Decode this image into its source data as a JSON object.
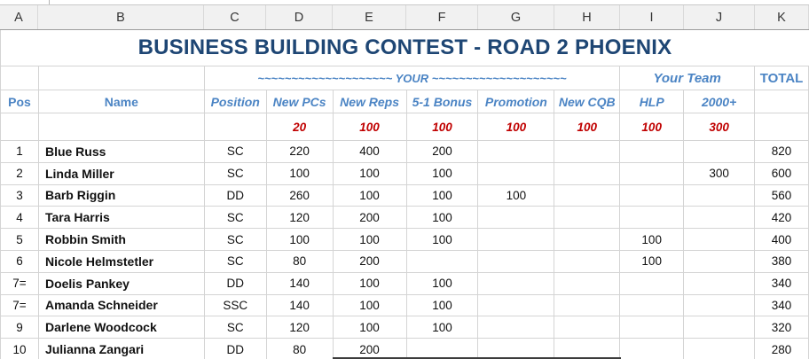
{
  "columns": [
    "A",
    "B",
    "C",
    "D",
    "E",
    "F",
    "G",
    "H",
    "I",
    "J",
    "K"
  ],
  "title": "BUSINESS BUILDING CONTEST - ROAD 2 PHOENIX",
  "groups": {
    "your": "~~~~~~~~~~~~~~~~~~~~ YOUR ~~~~~~~~~~~~~~~~~~~~",
    "your_team": "Your Team",
    "total": "TOTAL"
  },
  "headers": {
    "pos": "Pos",
    "name": "Name",
    "position": "Position",
    "new_pcs": "New PCs",
    "new_reps": "New Reps",
    "bonus": "5-1 Bonus",
    "promotion": "Promotion",
    "new_cqb": "New CQB",
    "hlp": "HLP",
    "two_thousand": "2000+"
  },
  "points": [
    "20",
    "100",
    "100",
    "100",
    "100",
    "100",
    "300"
  ],
  "colors": {
    "title_navy": "#1e4674",
    "header_blue": "#4b84c4",
    "points_red": "#c00000"
  },
  "rows": [
    {
      "pos": "1",
      "name": "Blue Russ",
      "position": "SC",
      "new_pcs": "220",
      "new_reps": "400",
      "bonus": "200",
      "promotion": "",
      "new_cqb": "",
      "hlp": "",
      "two_thousand": "",
      "total": "820"
    },
    {
      "pos": "2",
      "name": "Linda Miller",
      "position": "SC",
      "new_pcs": "100",
      "new_reps": "100",
      "bonus": "100",
      "promotion": "",
      "new_cqb": "",
      "hlp": "",
      "two_thousand": "300",
      "total": "600"
    },
    {
      "pos": "3",
      "name": "Barb Riggin",
      "position": "DD",
      "new_pcs": "260",
      "new_reps": "100",
      "bonus": "100",
      "promotion": "100",
      "new_cqb": "",
      "hlp": "",
      "two_thousand": "",
      "total": "560"
    },
    {
      "pos": "4",
      "name": "Tara Harris",
      "position": "SC",
      "new_pcs": "120",
      "new_reps": "200",
      "bonus": "100",
      "promotion": "",
      "new_cqb": "",
      "hlp": "",
      "two_thousand": "",
      "total": "420"
    },
    {
      "pos": "5",
      "name": "Robbin Smith",
      "position": "SC",
      "new_pcs": "100",
      "new_reps": "100",
      "bonus": "100",
      "promotion": "",
      "new_cqb": "",
      "hlp": "100",
      "two_thousand": "",
      "total": "400"
    },
    {
      "pos": "6",
      "name": "Nicole Helmstetler",
      "position": "SC",
      "new_pcs": "80",
      "new_reps": "200",
      "bonus": "",
      "promotion": "",
      "new_cqb": "",
      "hlp": "100",
      "two_thousand": "",
      "total": "380"
    },
    {
      "pos": "7=",
      "name": "Doelis Pankey",
      "position": "DD",
      "new_pcs": "140",
      "new_reps": "100",
      "bonus": "100",
      "promotion": "",
      "new_cqb": "",
      "hlp": "",
      "two_thousand": "",
      "total": "340"
    },
    {
      "pos": "7=",
      "name": "Amanda Schneider",
      "position": "SSC",
      "new_pcs": "140",
      "new_reps": "100",
      "bonus": "100",
      "promotion": "",
      "new_cqb": "",
      "hlp": "",
      "two_thousand": "",
      "total": "340"
    },
    {
      "pos": "9",
      "name": "Darlene Woodcock",
      "position": "SC",
      "new_pcs": "120",
      "new_reps": "100",
      "bonus": "100",
      "promotion": "",
      "new_cqb": "",
      "hlp": "",
      "two_thousand": "",
      "total": "320"
    },
    {
      "pos": "10",
      "name": "Julianna Zangari",
      "position": "DD",
      "new_pcs": "80",
      "new_reps": "200",
      "bonus": "",
      "promotion": "",
      "new_cqb": "",
      "hlp": "",
      "two_thousand": "",
      "total": "280"
    }
  ]
}
